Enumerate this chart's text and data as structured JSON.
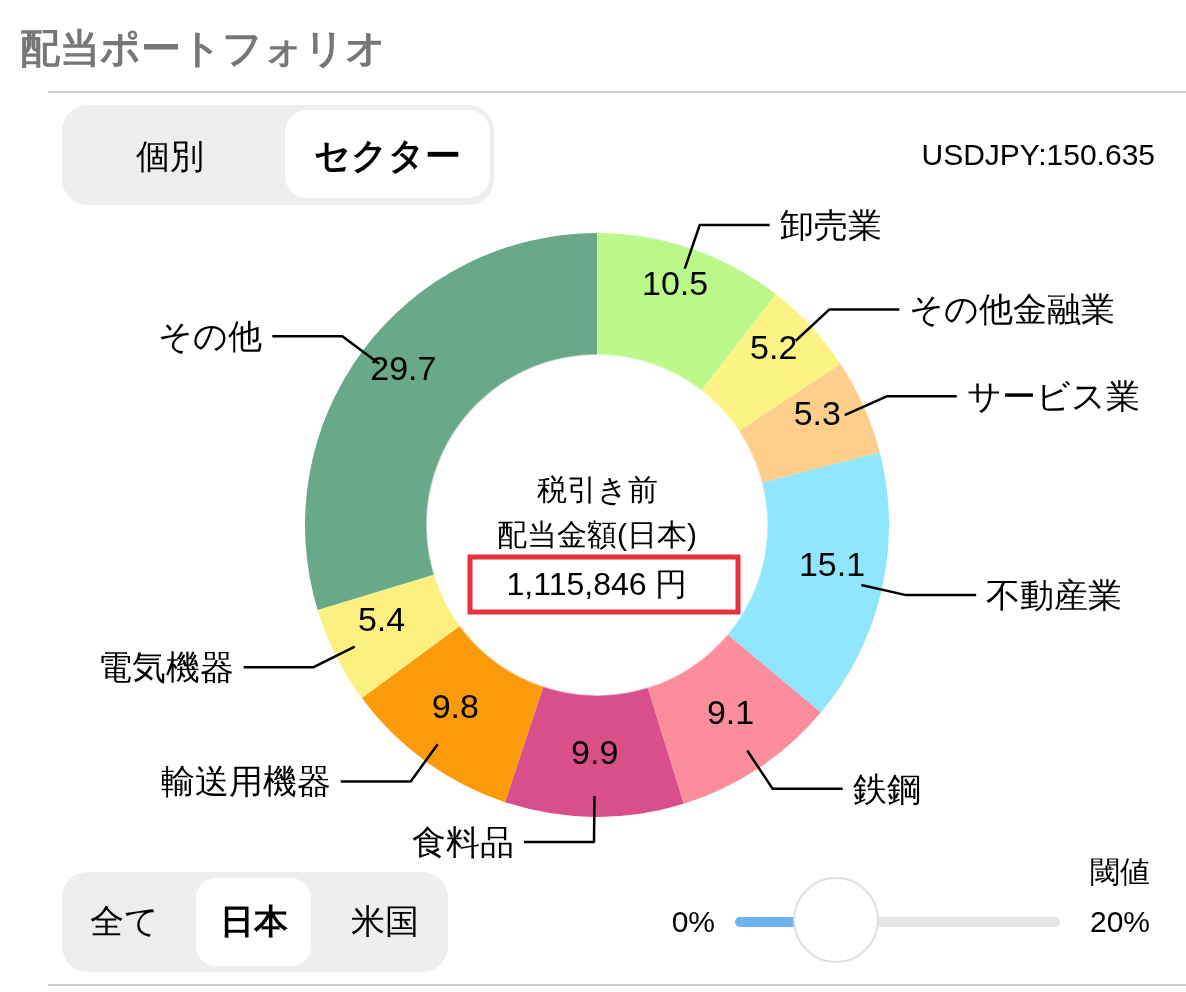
{
  "chart_data": {
    "type": "donut",
    "title": "配当ポートフォリオ",
    "categories": [
      "卸売業",
      "その他金融業",
      "サービス業",
      "不動産業",
      "鉄鋼",
      "食料品",
      "輸送用機器",
      "電気機器",
      "その他"
    ],
    "values": [
      10.5,
      5.2,
      5.3,
      15.1,
      9.1,
      9.9,
      9.8,
      5.4,
      29.7
    ],
    "colors": [
      "#bdf98a",
      "#fdf384",
      "#fdcf8a",
      "#90e6fc",
      "#fc8d9c",
      "#d94f8c",
      "#fb9a0a",
      "#fbf080",
      "#6aa88a"
    ],
    "data_labels": true,
    "annotations": [
      "税引き前",
      "配当金額(日本)",
      "1,115,846 円",
      "USDJPY:150.635",
      "個別",
      "セクター",
      "全て",
      "日本",
      "米国",
      "閾値",
      "0%",
      "20%"
    ]
  }
}
